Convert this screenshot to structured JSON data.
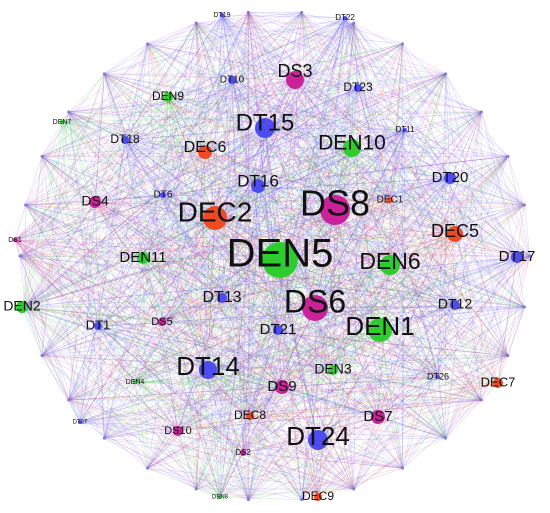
{
  "nodes": [
    {
      "label": "DT19"
    },
    {
      "label": "DT22"
    },
    {
      "label": "DS3"
    },
    {
      "label": "DT10"
    },
    {
      "label": "DEN9"
    },
    {
      "label": "DT23"
    },
    {
      "label": "DEN7"
    },
    {
      "label": "DT15"
    },
    {
      "label": "DEN10"
    },
    {
      "label": "DT18"
    },
    {
      "label": "DEC6"
    },
    {
      "label": "DT11"
    },
    {
      "label": "DT16"
    },
    {
      "label": "DT20"
    },
    {
      "label": "DT6"
    },
    {
      "label": "DEC1"
    },
    {
      "label": "DS4"
    },
    {
      "label": "DEC2"
    },
    {
      "label": "DS8"
    },
    {
      "label": "DEC5"
    },
    {
      "label": "DS1"
    },
    {
      "label": "DEN5"
    },
    {
      "label": "DEN6"
    },
    {
      "label": "DT17"
    },
    {
      "label": "DEN11"
    },
    {
      "label": "DEN2"
    },
    {
      "label": "DT13"
    },
    {
      "label": "DS6"
    },
    {
      "label": "DT12"
    },
    {
      "label": "DT1"
    },
    {
      "label": "DS5"
    },
    {
      "label": "DT21"
    },
    {
      "label": "DEN1"
    },
    {
      "label": "DEN4"
    },
    {
      "label": "DT14"
    },
    {
      "label": "DEN3"
    },
    {
      "label": "DS9"
    },
    {
      "label": "DT26"
    },
    {
      "label": "DEC7"
    },
    {
      "label": "DT27"
    },
    {
      "label": "DEC8"
    },
    {
      "label": "DS7"
    },
    {
      "label": "DS10"
    },
    {
      "label": "DT24"
    },
    {
      "label": "DS2"
    },
    {
      "label": "DEN8"
    },
    {
      "label": "DEC9"
    }
  ]
}
